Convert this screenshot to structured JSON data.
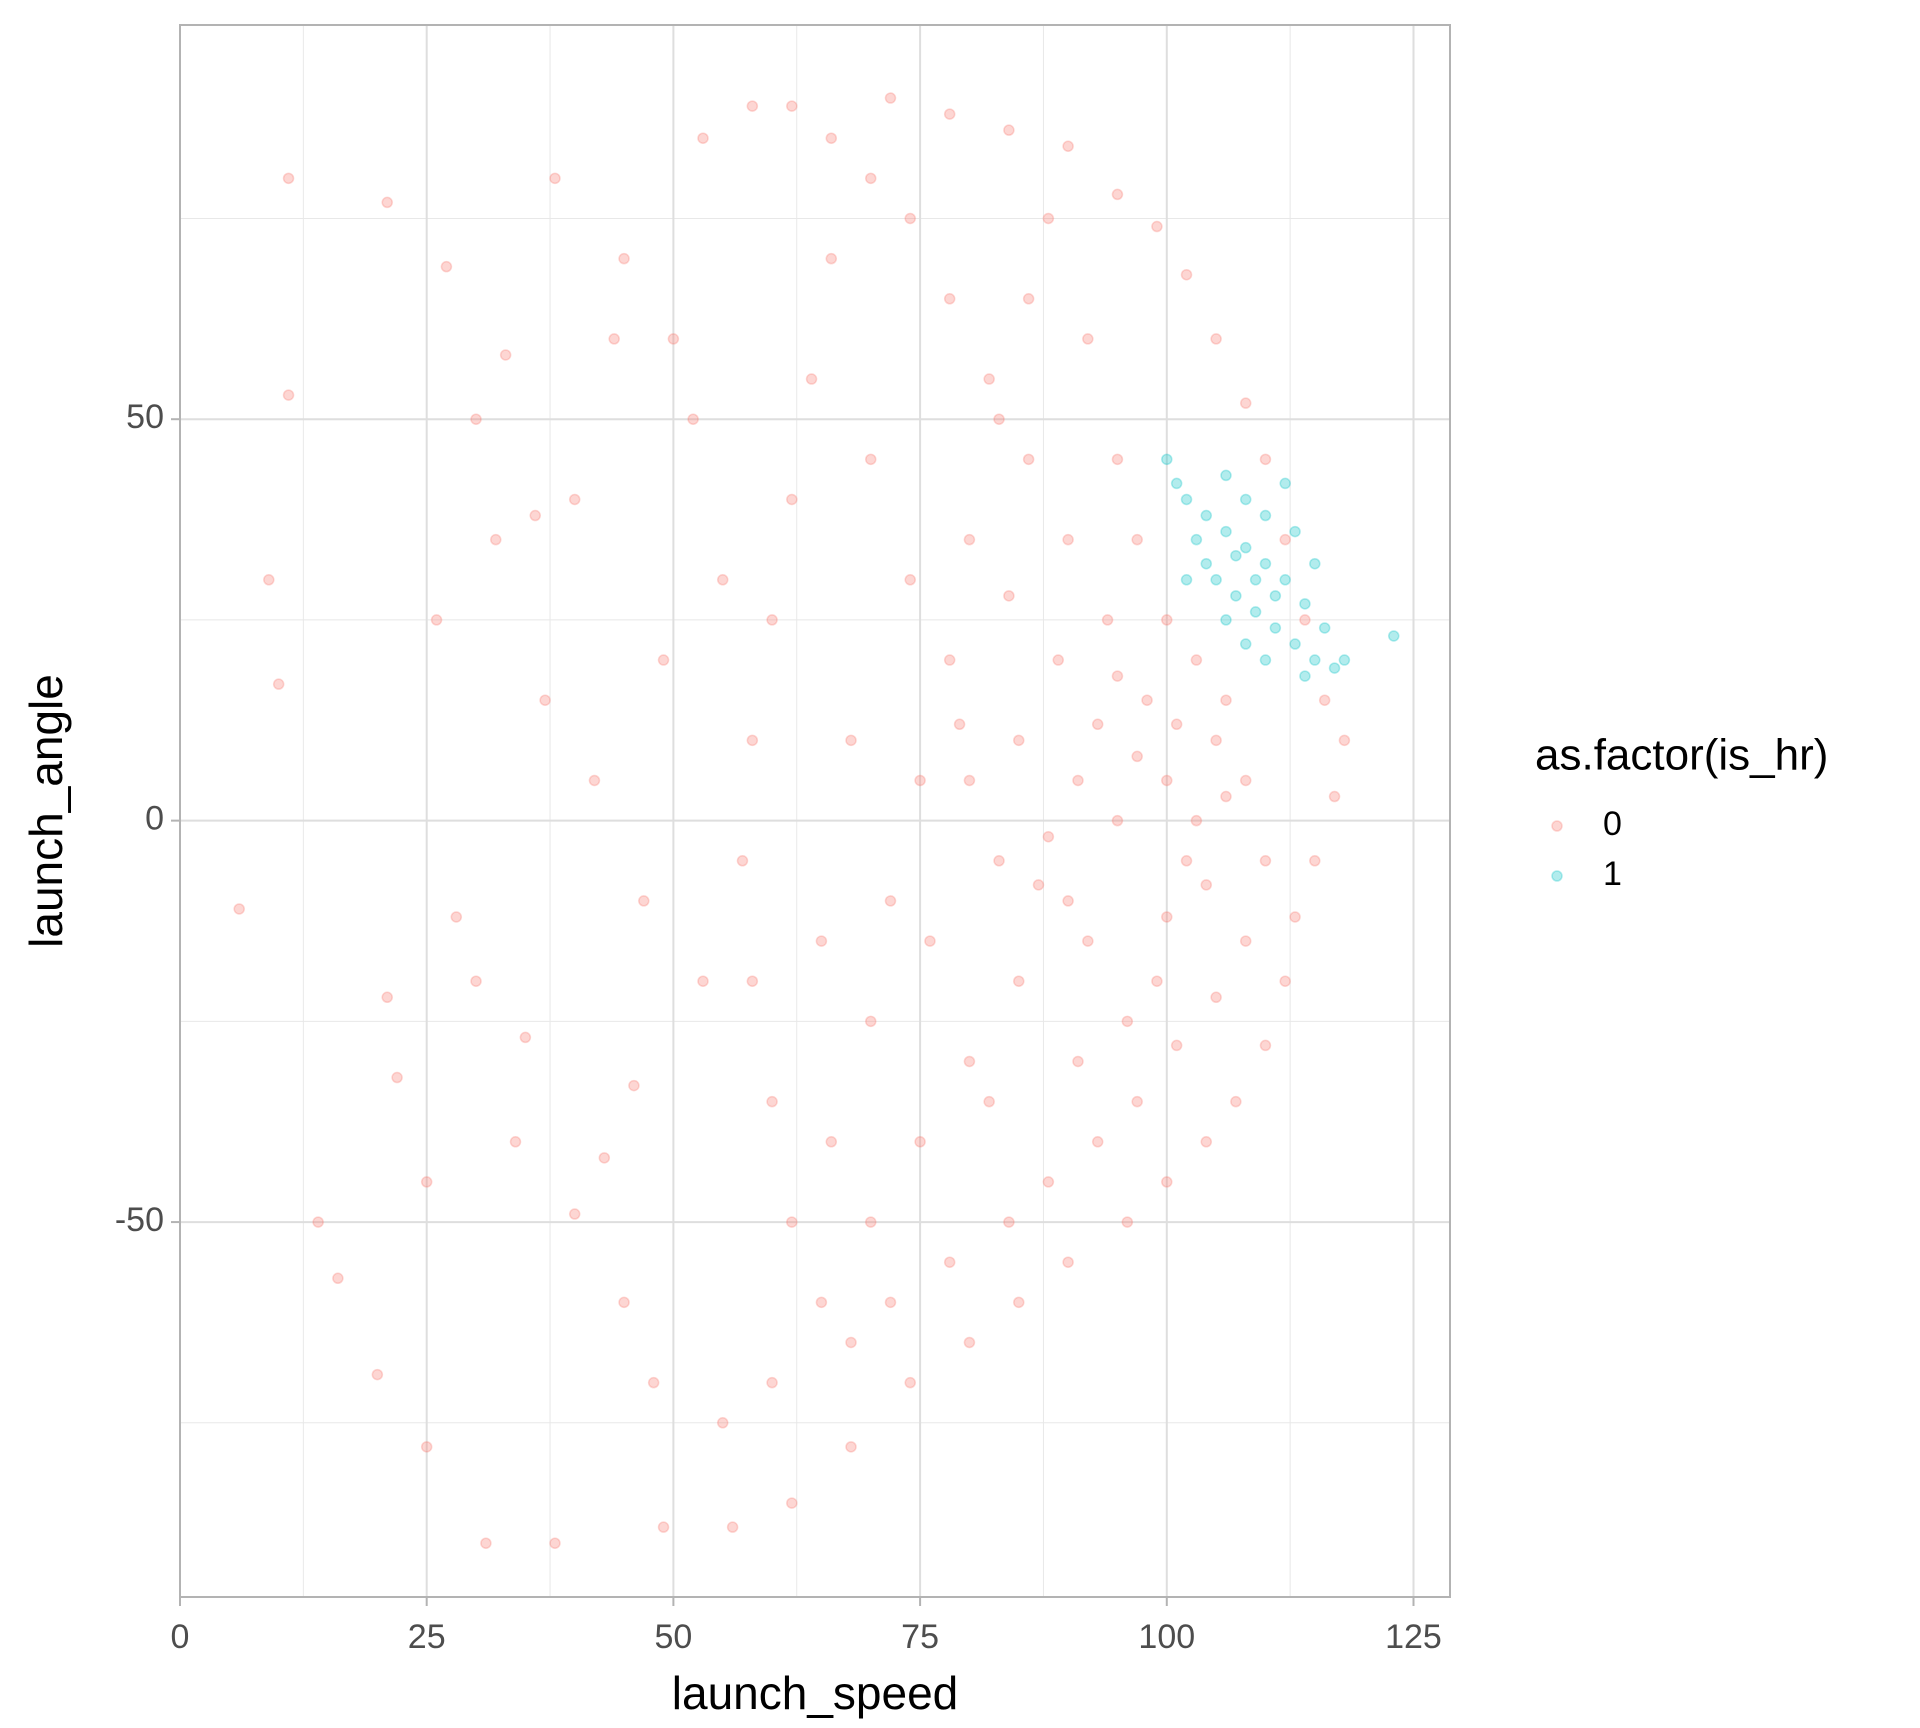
{
  "chart_data": {
    "type": "scatter",
    "x_label": "launch_speed",
    "y_label": "launch_angle",
    "legend_title": "as.factor(is_hr)",
    "legend": "right",
    "xlim": [
      0,
      128.7
    ],
    "ylim": [
      -96.7,
      99.1
    ],
    "xticks": [
      0,
      25,
      50,
      75,
      100,
      125
    ],
    "yticks": [
      -50,
      0,
      50
    ],
    "xminor": [
      12.5,
      37.5,
      62.5,
      87.5,
      112.5
    ],
    "yminor": [
      -75,
      -25,
      25,
      75
    ],
    "grid": true,
    "alpha": 0.3,
    "series": [
      {
        "name": "0",
        "color": "#F8766D",
        "x": [
          11,
          21,
          11,
          9,
          10,
          6,
          14,
          16,
          20,
          25,
          22,
          21,
          27,
          30,
          33,
          36,
          38,
          44,
          49,
          53,
          40,
          45,
          31,
          38,
          49,
          55,
          48,
          43,
          35,
          28,
          26,
          32,
          40,
          45,
          53,
          58,
          62,
          66,
          72,
          78,
          84,
          90,
          95,
          99,
          102,
          105,
          108,
          110,
          112,
          114,
          116,
          118,
          117,
          115,
          113,
          112,
          110,
          107,
          104,
          100,
          96,
          90,
          85,
          80,
          74,
          68,
          62,
          56,
          60,
          65,
          70,
          75,
          80,
          85,
          90,
          95,
          100,
          105,
          102,
          98,
          94,
          90,
          86,
          82,
          78,
          74,
          70,
          66,
          64,
          62,
          60,
          58,
          57,
          58,
          60,
          62,
          66,
          70,
          72,
          75,
          78,
          80,
          83,
          86,
          88,
          92,
          95,
          97,
          100,
          103,
          106,
          108,
          110,
          108,
          105,
          101,
          97,
          93,
          88,
          84,
          78,
          72,
          68,
          85,
          88,
          92,
          96,
          100,
          103,
          97,
          93,
          89,
          84,
          80,
          76,
          82,
          91,
          99,
          104,
          106,
          101,
          95,
          91,
          87,
          83,
          79,
          74,
          70,
          68,
          65,
          55,
          52,
          50,
          47,
          42,
          37,
          30,
          25,
          34,
          46
        ],
        "y": [
          80,
          77,
          53,
          30,
          17,
          -11,
          -50,
          -57,
          -69,
          -78,
          -32,
          -22,
          69,
          50,
          58,
          38,
          80,
          60,
          20,
          -20,
          -49,
          -60,
          -90,
          -90,
          -88,
          -75,
          -70,
          -42,
          -27,
          -12,
          25,
          35,
          40,
          70,
          85,
          89,
          89,
          85,
          90,
          88,
          86,
          84,
          78,
          74,
          68,
          60,
          52,
          45,
          35,
          25,
          15,
          10,
          3,
          -5,
          -12,
          -20,
          -28,
          -35,
          -40,
          -45,
          -50,
          -55,
          -60,
          -65,
          -70,
          -78,
          -85,
          -88,
          -70,
          -60,
          -50,
          -40,
          -30,
          -20,
          -10,
          0,
          5,
          10,
          -5,
          15,
          25,
          35,
          45,
          55,
          65,
          75,
          80,
          70,
          55,
          40,
          25,
          10,
          -5,
          -20,
          -35,
          -50,
          -40,
          -25,
          -10,
          5,
          20,
          35,
          50,
          65,
          75,
          60,
          45,
          35,
          25,
          20,
          15,
          5,
          -5,
          -15,
          -22,
          -28,
          -35,
          -40,
          -45,
          -50,
          -55,
          -60,
          -65,
          10,
          -2,
          -15,
          -25,
          -12,
          0,
          8,
          12,
          20,
          28,
          5,
          -15,
          -35,
          -30,
          -20,
          -8,
          3,
          12,
          18,
          5,
          -8,
          -5,
          12,
          30,
          45,
          10,
          -15,
          30,
          50,
          60,
          -10,
          5,
          15,
          -20,
          -45,
          -40,
          -33
        ]
      },
      {
        "name": "1",
        "color": "#00BFC4",
        "x": [
          100,
          102,
          104,
          106,
          108,
          110,
          112,
          114,
          116,
          118,
          123,
          105,
          107,
          109,
          111,
          113,
          115,
          103,
          101,
          106,
          108,
          110,
          112,
          113,
          115,
          104,
          106,
          108,
          110,
          114,
          117,
          102,
          107,
          109,
          111
        ],
        "y": [
          45,
          40,
          38,
          36,
          34,
          32,
          30,
          27,
          24,
          20,
          23,
          30,
          28,
          26,
          24,
          22,
          20,
          35,
          42,
          43,
          40,
          38,
          42,
          36,
          32,
          32,
          25,
          22,
          20,
          18,
          19,
          30,
          33,
          30,
          28
        ]
      }
    ]
  }
}
